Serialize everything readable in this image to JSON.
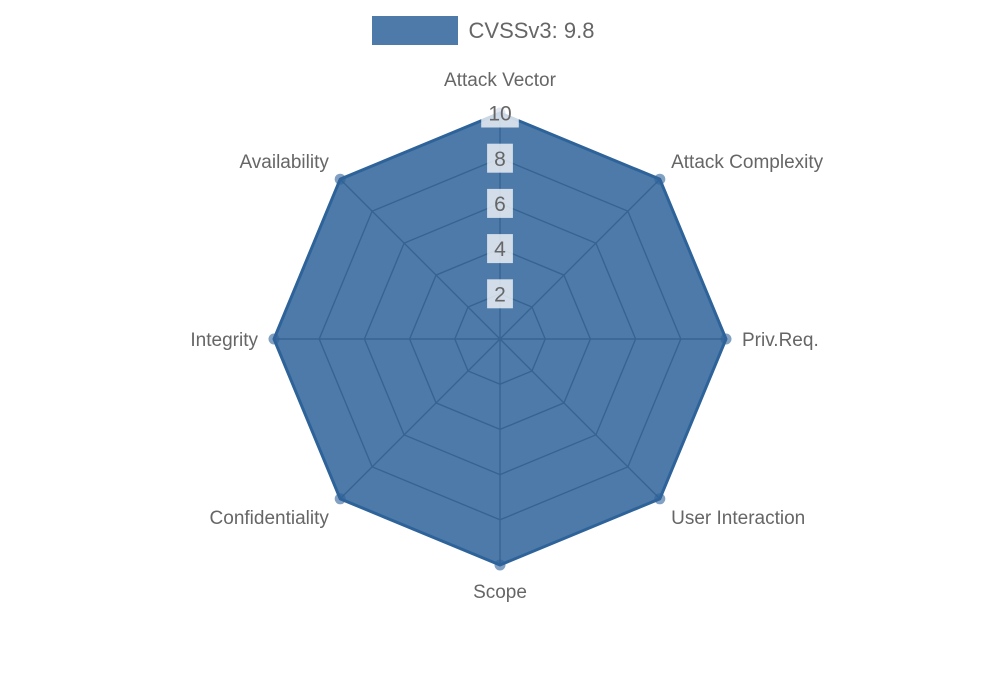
{
  "legend": {
    "label": "CVSSv3: 9.8"
  },
  "chart_data": {
    "type": "radar",
    "title": "",
    "categories": [
      "Attack Vector",
      "Attack Complexity",
      "Priv.Req.",
      "User Interaction",
      "Scope",
      "Confidentiality",
      "Integrity",
      "Availability"
    ],
    "series": [
      {
        "name": "CVSSv3: 9.8",
        "values": [
          10,
          10,
          10,
          10,
          10,
          10,
          10,
          10
        ]
      }
    ],
    "rmin": 0,
    "rmax": 10,
    "tick_values": [
      2,
      4,
      6,
      8,
      10
    ],
    "tick_labels": [
      "2",
      "4",
      "6",
      "8",
      "10"
    ],
    "grid": true,
    "grid_shape": "polygon",
    "start_axis": "top",
    "direction": "clockwise",
    "legend_position": "top",
    "colors": {
      "fill": "rgba(46,99,154,0.85)",
      "border": "rgb(46,99,154)",
      "point": "rgba(46,99,154,0.6)",
      "grid": "#666666",
      "axis_label": "#666666",
      "tick_label": "#666666",
      "tick_backdrop": "rgba(255,255,255,0.75)",
      "legend_text": "#666666"
    }
  }
}
